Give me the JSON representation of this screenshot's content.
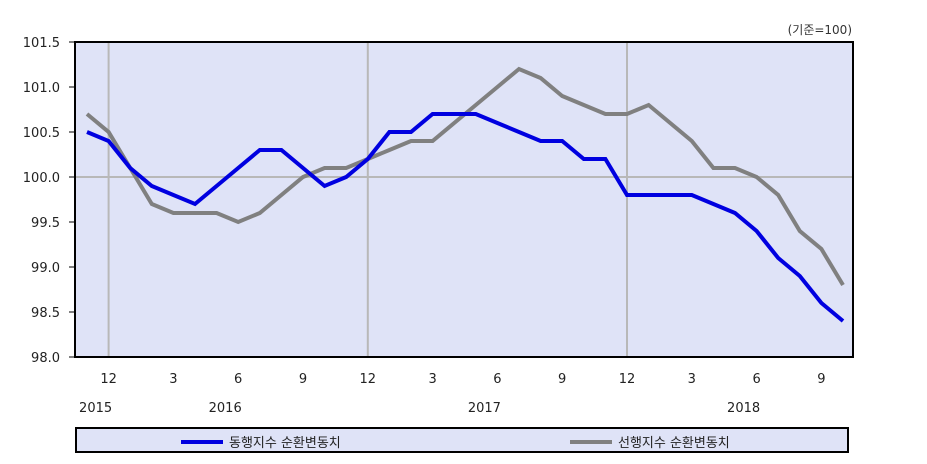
{
  "chart_data": {
    "type": "line",
    "title": "",
    "unit_note": "(기준=100)",
    "xlabel": "",
    "ylabel": "",
    "ylim": [
      98.0,
      101.5
    ],
    "yticks": [
      "98.0",
      "98.5",
      "99.0",
      "99.5",
      "100.0",
      "100.5",
      "101.0",
      "101.5"
    ],
    "grid": true,
    "x": [
      "2015-11",
      "2015-12",
      "2016-01",
      "2016-02",
      "2016-03",
      "2016-04",
      "2016-05",
      "2016-06",
      "2016-07",
      "2016-08",
      "2016-09",
      "2016-10",
      "2016-11",
      "2016-12",
      "2017-01",
      "2017-02",
      "2017-03",
      "2017-04",
      "2017-05",
      "2017-06",
      "2017-07",
      "2017-08",
      "2017-09",
      "2017-10",
      "2017-11",
      "2017-12",
      "2018-01",
      "2018-02",
      "2018-03",
      "2018-04",
      "2018-05",
      "2018-06",
      "2018-07",
      "2018-08",
      "2018-09",
      "2018-10"
    ],
    "month_tick_labels": [
      {
        "index": 1,
        "label": "12"
      },
      {
        "index": 4,
        "label": "3"
      },
      {
        "index": 7,
        "label": "6"
      },
      {
        "index": 10,
        "label": "9"
      },
      {
        "index": 13,
        "label": "12"
      },
      {
        "index": 16,
        "label": "3"
      },
      {
        "index": 19,
        "label": "6"
      },
      {
        "index": 22,
        "label": "9"
      },
      {
        "index": 25,
        "label": "12"
      },
      {
        "index": 28,
        "label": "3"
      },
      {
        "index": 31,
        "label": "6"
      },
      {
        "index": 34,
        "label": "9"
      }
    ],
    "year_labels": [
      {
        "index": 1,
        "label": "2015"
      },
      {
        "index": 7,
        "label": "2016"
      },
      {
        "index": 19,
        "label": "2017"
      },
      {
        "index": 31,
        "label": "2018"
      }
    ],
    "vertical_gridlines_at_index": [
      1,
      13,
      25
    ],
    "horizontal_gridline_at": 100.0,
    "series": [
      {
        "name": "동행지수 순환변동치",
        "color": "#0000e0",
        "values": [
          100.5,
          100.4,
          100.1,
          99.9,
          99.8,
          99.7,
          99.9,
          100.1,
          100.3,
          100.3,
          100.1,
          99.9,
          100.0,
          100.2,
          100.5,
          100.5,
          100.7,
          100.7,
          100.7,
          100.6,
          100.5,
          100.4,
          100.4,
          100.2,
          100.2,
          99.8,
          99.8,
          99.8,
          99.8,
          99.7,
          99.6,
          99.4,
          99.1,
          98.9,
          98.6,
          98.4
        ]
      },
      {
        "name": "선행지수 순환변동치",
        "color": "#808080",
        "values": [
          100.7,
          100.5,
          100.1,
          99.7,
          99.6,
          99.6,
          99.6,
          99.5,
          99.6,
          99.8,
          100.0,
          100.1,
          100.1,
          100.2,
          100.3,
          100.4,
          100.4,
          100.6,
          100.8,
          101.0,
          101.2,
          101.1,
          100.9,
          100.8,
          100.7,
          100.7,
          100.8,
          100.6,
          100.4,
          100.1,
          100.1,
          100.0,
          99.8,
          99.4,
          99.2,
          98.8
        ]
      }
    ],
    "legend_position": "bottom",
    "plot_background": "#dfe3f7"
  },
  "legend": {
    "items": [
      {
        "label": "동행지수 순환변동치",
        "color": "#0000e0"
      },
      {
        "label": "선행지수 순환변동치",
        "color": "#808080"
      }
    ]
  }
}
